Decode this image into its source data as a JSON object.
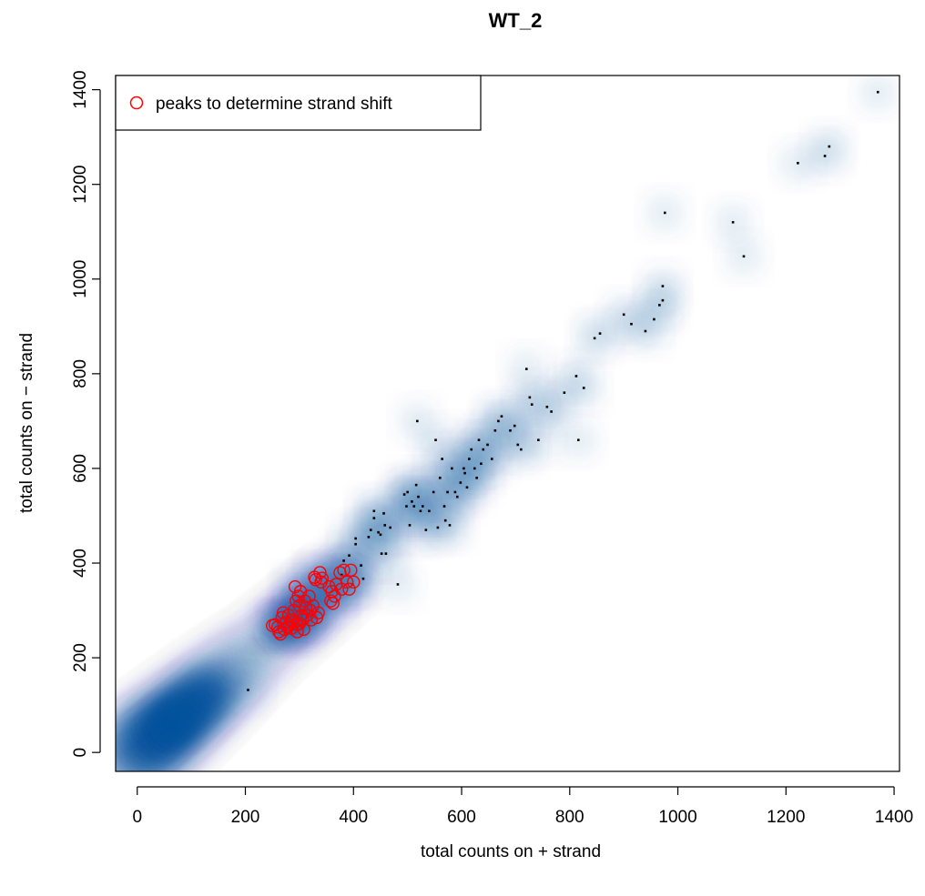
{
  "chart_data": {
    "type": "scatter",
    "title": "WT_2",
    "xlabel": "total counts on + strand",
    "ylabel": "total counts on − strand",
    "xlim": [
      -40,
      1410
    ],
    "ylim": [
      -40,
      1430
    ],
    "x_ticks": [
      "0",
      "200",
      "400",
      "600",
      "800",
      "1000",
      "1200",
      "1400"
    ],
    "y_ticks": [
      "0",
      "200",
      "400",
      "600",
      "800",
      "1000",
      "1200",
      "1400"
    ],
    "grid": false,
    "legend": {
      "position": "top-left",
      "entries": [
        {
          "label": "peaks to determine strand shift",
          "marker": "open-circle",
          "color": "#FF0000"
        }
      ]
    },
    "colors": {
      "density": "#08519C",
      "points": "#000000",
      "highlight": "#FF0000"
    },
    "series": [
      {
        "name": "peaks to determine strand shift",
        "style": "highlight",
        "points": [
          [
            255,
            270
          ],
          [
            262,
            255
          ],
          [
            265,
            250
          ],
          [
            268,
            285
          ],
          [
            270,
            295
          ],
          [
            272,
            260
          ],
          [
            275,
            275
          ],
          [
            278,
            265
          ],
          [
            280,
            290
          ],
          [
            282,
            270
          ],
          [
            285,
            280
          ],
          [
            288,
            275
          ],
          [
            290,
            300
          ],
          [
            292,
            350
          ],
          [
            294,
            320
          ],
          [
            296,
            270
          ],
          [
            298,
            330
          ],
          [
            300,
            310
          ],
          [
            302,
            340
          ],
          [
            304,
            290
          ],
          [
            306,
            280
          ],
          [
            308,
            260
          ],
          [
            310,
            320
          ],
          [
            312,
            305
          ],
          [
            315,
            290
          ],
          [
            318,
            330
          ],
          [
            320,
            300
          ],
          [
            325,
            310
          ],
          [
            328,
            370
          ],
          [
            330,
            365
          ],
          [
            332,
            285
          ],
          [
            335,
            295
          ],
          [
            338,
            380
          ],
          [
            340,
            360
          ],
          [
            355,
            350
          ],
          [
            358,
            320
          ],
          [
            360,
            340
          ],
          [
            362,
            315
          ],
          [
            365,
            330
          ],
          [
            368,
            355
          ],
          [
            375,
            380
          ],
          [
            378,
            345
          ],
          [
            382,
            385
          ],
          [
            388,
            360
          ],
          [
            392,
            345
          ],
          [
            395,
            385
          ],
          [
            400,
            360
          ],
          [
            260,
            265
          ],
          [
            285,
            262
          ],
          [
            300,
            272
          ],
          [
            322,
            280
          ],
          [
            342,
            368
          ],
          [
            296,
            255
          ],
          [
            250,
            268
          ]
        ]
      },
      {
        "style": "points",
        "points": [
          [
            205,
            132
          ],
          [
            378,
            375
          ],
          [
            382,
            405
          ],
          [
            392,
            416
          ],
          [
            398,
            355
          ],
          [
            404,
            440
          ],
          [
            404,
            452
          ],
          [
            414,
            395
          ],
          [
            418,
            367
          ],
          [
            428,
            455
          ],
          [
            432,
            470
          ],
          [
            438,
            495
          ],
          [
            438,
            510
          ],
          [
            446,
            465
          ],
          [
            450,
            460
          ],
          [
            452,
            420
          ],
          [
            456,
            505
          ],
          [
            458,
            480
          ],
          [
            460,
            420
          ],
          [
            468,
            475
          ],
          [
            482,
            355
          ],
          [
            494,
            545
          ],
          [
            498,
            520
          ],
          [
            500,
            550
          ],
          [
            504,
            480
          ],
          [
            508,
            530
          ],
          [
            512,
            520
          ],
          [
            516,
            565
          ],
          [
            518,
            700
          ],
          [
            520,
            540
          ],
          [
            524,
            510
          ],
          [
            528,
            520
          ],
          [
            534,
            470
          ],
          [
            540,
            510
          ],
          [
            548,
            550
          ],
          [
            552,
            660
          ],
          [
            556,
            475
          ],
          [
            560,
            580
          ],
          [
            564,
            620
          ],
          [
            568,
            520
          ],
          [
            570,
            490
          ],
          [
            574,
            550
          ],
          [
            578,
            480
          ],
          [
            582,
            600
          ],
          [
            588,
            550
          ],
          [
            592,
            540
          ],
          [
            598,
            570
          ],
          [
            604,
            600
          ],
          [
            606,
            590
          ],
          [
            610,
            560
          ],
          [
            614,
            620
          ],
          [
            618,
            640
          ],
          [
            624,
            600
          ],
          [
            628,
            580
          ],
          [
            632,
            660
          ],
          [
            636,
            610
          ],
          [
            640,
            640
          ],
          [
            648,
            650
          ],
          [
            656,
            620
          ],
          [
            662,
            680
          ],
          [
            668,
            700
          ],
          [
            674,
            710
          ],
          [
            690,
            680
          ],
          [
            698,
            690
          ],
          [
            704,
            650
          ],
          [
            710,
            640
          ],
          [
            720,
            810
          ],
          [
            726,
            750
          ],
          [
            730,
            735
          ],
          [
            742,
            660
          ],
          [
            758,
            730
          ],
          [
            766,
            720
          ],
          [
            790,
            760
          ],
          [
            812,
            795
          ],
          [
            816,
            660
          ],
          [
            826,
            770
          ],
          [
            846,
            875
          ],
          [
            856,
            885
          ],
          [
            900,
            925
          ],
          [
            914,
            905
          ],
          [
            940,
            890
          ],
          [
            956,
            915
          ],
          [
            966,
            945
          ],
          [
            972,
            955
          ],
          [
            972,
            985
          ],
          [
            976,
            1140
          ],
          [
            1102,
            1120
          ],
          [
            1122,
            1048
          ],
          [
            1222,
            1245
          ],
          [
            1272,
            1260
          ],
          [
            1280,
            1280
          ],
          [
            1370,
            1395
          ]
        ]
      }
    ]
  }
}
